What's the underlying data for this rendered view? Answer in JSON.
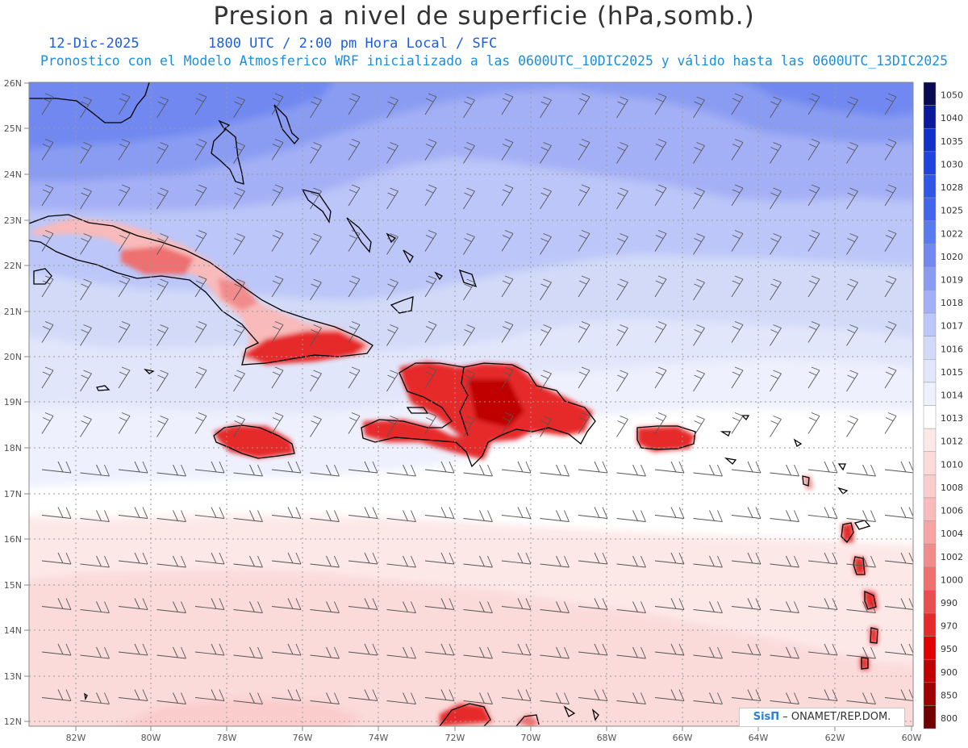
{
  "header": {
    "title": "Presion a nivel de superficie (hPa,somb.)",
    "date": "12-Dic-2025",
    "time_info": "1800 UTC / 2:00 pm Hora Local / SFC",
    "model_info": "Pronostico con el Modelo Atmosferico WRF inicializado a las 0600UTC_10DIC2025 y válido hasta las  0600UTC_13DIC2025"
  },
  "map": {
    "lat_labels": [
      "26N",
      "25N",
      "24N",
      "23N",
      "22N",
      "21N",
      "20N",
      "19N",
      "18N",
      "17N",
      "16N",
      "15N",
      "14N",
      "13N",
      "12N"
    ],
    "lon_labels": [
      "82W",
      "80W",
      "78W",
      "76W",
      "74W",
      "72W",
      "70W",
      "68W",
      "66W",
      "64W",
      "62W",
      "60W"
    ],
    "lat_range": [
      11.9,
      26.0
    ],
    "lon_range": [
      -83.2,
      -60.0
    ]
  },
  "colorbar": {
    "levels": [
      "1050",
      "1040",
      "1035",
      "1030",
      "1028",
      "1025",
      "1022",
      "1020",
      "1019",
      "1018",
      "1017",
      "1016",
      "1015",
      "1014",
      "1013",
      "1012",
      "1010",
      "1008",
      "1006",
      "1004",
      "1002",
      "1000",
      "990",
      "970",
      "950",
      "900",
      "850",
      "800"
    ],
    "colors": [
      "#0a0a50",
      "#0b1a9a",
      "#1030c8",
      "#1f45de",
      "#3057e6",
      "#4466ec",
      "#5a7aef",
      "#7088f0",
      "#8a9cf2",
      "#a4b0f5",
      "#bcc6f8",
      "#d2daf8",
      "#e2e6fb",
      "#eef0fd",
      "#ffffff",
      "#fde8e8",
      "#fbdada",
      "#facccc",
      "#f8baba",
      "#f6a4a4",
      "#f28c8c",
      "#ee7070",
      "#ea4f4f",
      "#e62a2a",
      "#e00000",
      "#c00000",
      "#a00000",
      "#700000"
    ]
  },
  "credit": {
    "logo": "SisΠ",
    "text": " – ONAMET/REP.DOM."
  }
}
